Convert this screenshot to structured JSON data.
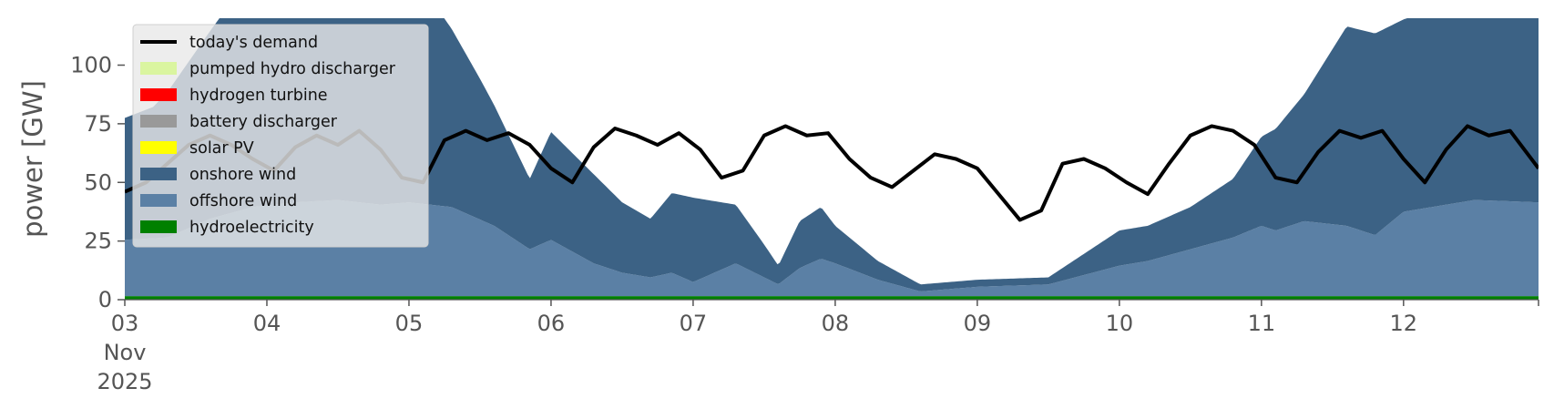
{
  "chart_data": {
    "type": "area",
    "ylabel": "power [GW]",
    "ylim": [
      0,
      120
    ],
    "yticks": [
      0,
      25,
      50,
      75,
      100
    ],
    "xlim": [
      0,
      9.95
    ],
    "xticks": [
      {
        "x": 0,
        "label": "03\nNov\n2025"
      },
      {
        "x": 1,
        "label": "04"
      },
      {
        "x": 2,
        "label": "05"
      },
      {
        "x": 3,
        "label": "06"
      },
      {
        "x": 4,
        "label": "07"
      },
      {
        "x": 5,
        "label": "08"
      },
      {
        "x": 6,
        "label": "09"
      },
      {
        "x": 7,
        "label": "10"
      },
      {
        "x": 8,
        "label": "11"
      },
      {
        "x": 9,
        "label": "12"
      }
    ],
    "x_unit": "days since 03 Nov 2025",
    "legend_position": "top-left",
    "grid": false,
    "stack_order": [
      "hydroelectricity",
      "offshore wind",
      "onshore wind",
      "solar PV",
      "battery discharger",
      "hydrogen turbine",
      "pumped hydro discharger"
    ],
    "series": [
      {
        "name": "hydroelectricity",
        "color": "#008000",
        "x": [
          0,
          9.95
        ],
        "values": [
          1.5,
          1.5
        ]
      },
      {
        "name": "offshore wind",
        "color": "#5b80a5",
        "x": [
          0,
          0.3,
          0.6,
          0.9,
          1.2,
          1.5,
          1.8,
          2.0,
          2.3,
          2.6,
          2.85,
          3.0,
          3.3,
          3.5,
          3.7,
          3.85,
          4.0,
          4.3,
          4.5,
          4.6,
          4.75,
          4.9,
          5.0,
          5.3,
          5.6,
          6.0,
          6.5,
          7.0,
          7.2,
          7.5,
          7.8,
          8.0,
          8.1,
          8.3,
          8.6,
          8.8,
          9.0,
          9.5,
          9.95
        ],
        "values": [
          24,
          25,
          33,
          38,
          40,
          41,
          39,
          40,
          38,
          30,
          20,
          24,
          14,
          10,
          8,
          10,
          6,
          14,
          8,
          5,
          12,
          16,
          14,
          7,
          2,
          4,
          5,
          13,
          15,
          20,
          25,
          30,
          28,
          32,
          30,
          26,
          36,
          41,
          40
        ]
      },
      {
        "name": "onshore wind",
        "color": "#3c6285",
        "x": [
          0,
          0.2,
          0.6,
          0.9,
          1.2,
          1.5,
          1.8,
          2.0,
          2.2,
          2.5,
          2.85,
          3.0,
          3.3,
          3.5,
          3.7,
          3.85,
          4.0,
          4.3,
          4.5,
          4.6,
          4.75,
          4.9,
          5.0,
          5.3,
          5.6,
          6.0,
          6.5,
          7.0,
          7.2,
          7.5,
          7.8,
          8.0,
          8.3,
          8.6,
          8.8,
          9.0,
          9.2,
          9.5,
          9.7,
          9.95
        ],
        "values": [
          52,
          56,
          80,
          100,
          120,
          112,
          80,
          96,
          84,
          60,
          30,
          46,
          38,
          30,
          25,
          34,
          36,
          25,
          14,
          8,
          20,
          22,
          16,
          8,
          3,
          3,
          3,
          15,
          15,
          18,
          25,
          38,
          54,
          85,
          86,
          82,
          84,
          100,
          110,
          105
        ]
      },
      {
        "name": "solar PV",
        "color": "#ffff00",
        "values": []
      },
      {
        "name": "battery discharger",
        "color": "#999999",
        "values": []
      },
      {
        "name": "hydrogen turbine",
        "color": "#ff0000",
        "values": []
      },
      {
        "name": "pumped hydro discharger",
        "color": "#daf5a0",
        "values": []
      },
      {
        "name": "today's demand",
        "color": "#000000",
        "line": true,
        "x": [
          0,
          0.15,
          0.3,
          0.45,
          0.6,
          0.75,
          0.9,
          1.05,
          1.2,
          1.35,
          1.5,
          1.65,
          1.8,
          1.95,
          2.1,
          2.25,
          2.4,
          2.55,
          2.7,
          2.85,
          3.0,
          3.15,
          3.3,
          3.45,
          3.6,
          3.75,
          3.9,
          4.05,
          4.2,
          4.35,
          4.5,
          4.65,
          4.8,
          4.95,
          5.1,
          5.25,
          5.4,
          5.55,
          5.7,
          5.85,
          6.0,
          6.15,
          6.3,
          6.45,
          6.6,
          6.75,
          6.9,
          7.05,
          7.2,
          7.35,
          7.5,
          7.65,
          7.8,
          7.95,
          8.1,
          8.25,
          8.4,
          8.55,
          8.7,
          8.85,
          9.0,
          9.15,
          9.3,
          9.45,
          9.6,
          9.75,
          9.95
        ],
        "values": [
          46,
          50,
          58,
          66,
          70,
          66,
          60,
          55,
          65,
          70,
          66,
          72,
          64,
          52,
          50,
          68,
          72,
          68,
          71,
          66,
          56,
          50,
          65,
          73,
          70,
          66,
          71,
          64,
          52,
          55,
          70,
          74,
          70,
          71,
          60,
          52,
          48,
          55,
          62,
          60,
          56,
          45,
          34,
          38,
          58,
          60,
          56,
          50,
          45,
          58,
          70,
          74,
          72,
          66,
          52,
          50,
          63,
          72,
          69,
          72,
          60,
          50,
          64,
          74,
          70,
          72,
          56
        ]
      }
    ]
  },
  "legend": {
    "items": [
      {
        "label": "today's demand",
        "color": "#000000",
        "kind": "line"
      },
      {
        "label": "pumped hydro discharger",
        "color": "#daf5a0",
        "kind": "patch"
      },
      {
        "label": "hydrogen turbine",
        "color": "#ff0000",
        "kind": "patch"
      },
      {
        "label": "battery discharger",
        "color": "#999999",
        "kind": "patch"
      },
      {
        "label": "solar PV",
        "color": "#ffff00",
        "kind": "patch"
      },
      {
        "label": "onshore wind",
        "color": "#3c6285",
        "kind": "patch"
      },
      {
        "label": "offshore wind",
        "color": "#5b80a5",
        "kind": "patch"
      },
      {
        "label": "hydroelectricity",
        "color": "#008000",
        "kind": "patch"
      }
    ]
  }
}
